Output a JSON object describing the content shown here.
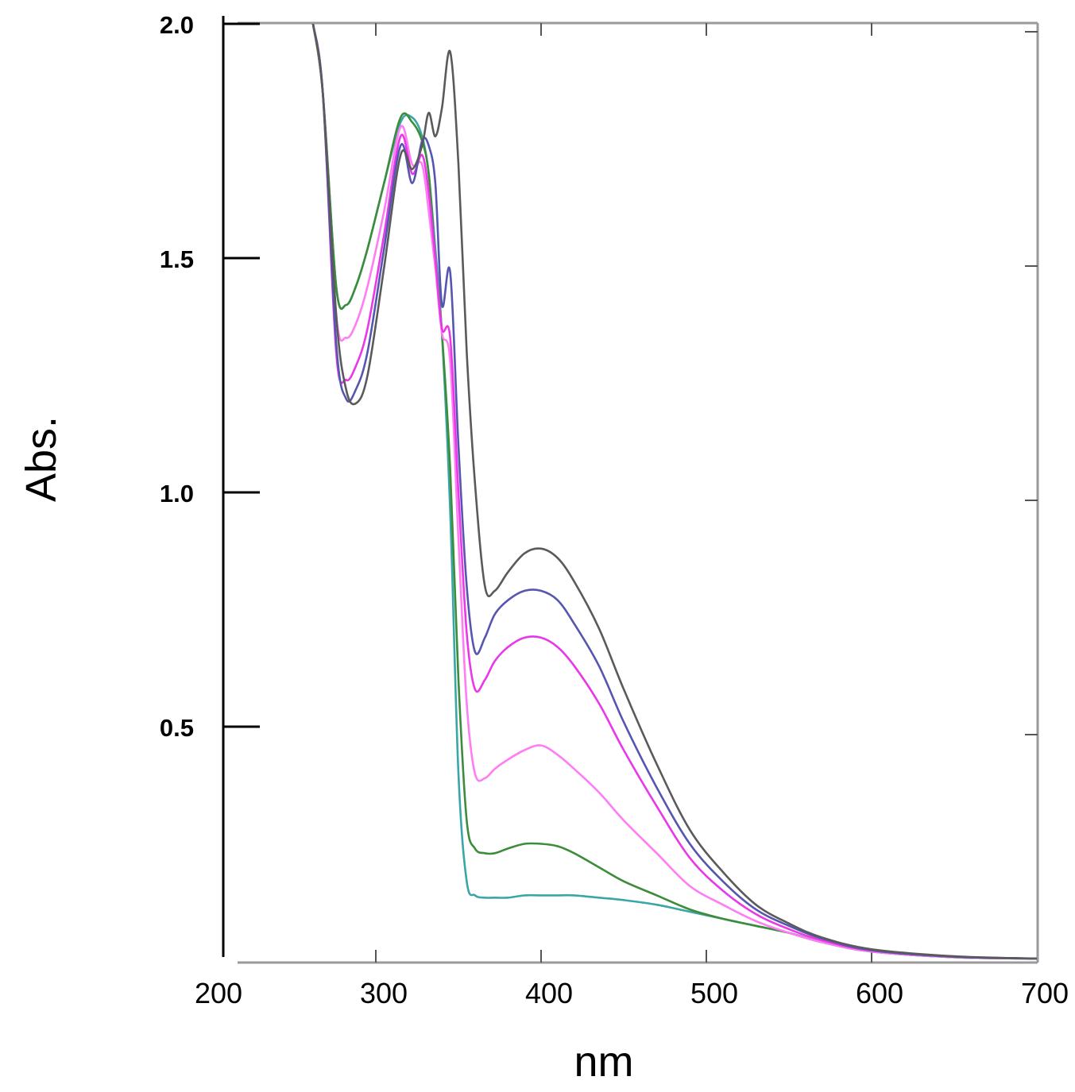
{
  "chart_data": {
    "type": "line",
    "title": "",
    "xlabel": "nm",
    "ylabel": "Abs.",
    "xlim": [
      200,
      700
    ],
    "ylim": [
      0,
      2.0
    ],
    "x_ticks": [
      {
        "value": 200,
        "label": "200"
      },
      {
        "value": 300,
        "label": "300"
      },
      {
        "value": 400,
        "label": "400"
      },
      {
        "value": 500,
        "label": "500"
      },
      {
        "value": 600,
        "label": "600"
      },
      {
        "value": 700,
        "label": "700"
      }
    ],
    "y_ticks": [
      {
        "value": 0.5,
        "label": "0.5"
      },
      {
        "value": 1.0,
        "label": "1.0"
      },
      {
        "value": 1.5,
        "label": "1.5"
      },
      {
        "value": 2.0,
        "label": "2.0"
      }
    ],
    "grid": false,
    "legend": "none",
    "series": [
      {
        "color": "#5a5a5a",
        "x": [
          262,
          268,
          276,
          282,
          288,
          295,
          305,
          315,
          322,
          328,
          332,
          336,
          340,
          345,
          350,
          355,
          360,
          366,
          372,
          380,
          390,
          400,
          410,
          420,
          435,
          450,
          470,
          490,
          510,
          530,
          550,
          570,
          600,
          650,
          700
        ],
        "y": [
          2.0,
          1.85,
          1.38,
          1.22,
          1.19,
          1.25,
          1.48,
          1.72,
          1.69,
          1.74,
          1.81,
          1.76,
          1.82,
          1.94,
          1.7,
          1.3,
          1.02,
          0.8,
          0.79,
          0.83,
          0.87,
          0.88,
          0.86,
          0.81,
          0.71,
          0.58,
          0.42,
          0.28,
          0.19,
          0.12,
          0.08,
          0.05,
          0.025,
          0.01,
          0.005
        ]
      },
      {
        "color": "#5656b0",
        "x": [
          262,
          268,
          276,
          282,
          288,
          295,
          305,
          315,
          322,
          328,
          332,
          336,
          340,
          345,
          350,
          355,
          360,
          366,
          372,
          380,
          390,
          400,
          410,
          420,
          435,
          450,
          470,
          490,
          510,
          530,
          550,
          570,
          600,
          650,
          700
        ],
        "y": [
          2.0,
          1.85,
          1.32,
          1.2,
          1.22,
          1.3,
          1.52,
          1.74,
          1.66,
          1.75,
          1.74,
          1.66,
          1.4,
          1.47,
          1.1,
          0.8,
          0.66,
          0.69,
          0.74,
          0.77,
          0.79,
          0.79,
          0.77,
          0.72,
          0.63,
          0.51,
          0.37,
          0.25,
          0.17,
          0.11,
          0.075,
          0.048,
          0.023,
          0.009,
          0.005
        ]
      },
      {
        "color": "#e838e8",
        "x": [
          262,
          268,
          276,
          282,
          288,
          295,
          305,
          315,
          322,
          328,
          332,
          336,
          340,
          345,
          350,
          355,
          360,
          366,
          372,
          380,
          390,
          400,
          410,
          420,
          435,
          450,
          470,
          490,
          510,
          530,
          550,
          570,
          600,
          650,
          700
        ],
        "y": [
          2.0,
          1.85,
          1.3,
          1.24,
          1.27,
          1.35,
          1.55,
          1.76,
          1.68,
          1.72,
          1.64,
          1.5,
          1.35,
          1.33,
          1.0,
          0.7,
          0.58,
          0.6,
          0.64,
          0.67,
          0.69,
          0.69,
          0.67,
          0.63,
          0.55,
          0.45,
          0.33,
          0.22,
          0.15,
          0.1,
          0.068,
          0.044,
          0.022,
          0.009,
          0.005
        ]
      },
      {
        "color": "#ff7cf4",
        "x": [
          262,
          268,
          276,
          282,
          288,
          295,
          305,
          315,
          322,
          328,
          332,
          336,
          340,
          345,
          350,
          355,
          360,
          366,
          372,
          380,
          390,
          400,
          410,
          420,
          435,
          450,
          470,
          490,
          510,
          530,
          550,
          570,
          600,
          650,
          700
        ],
        "y": [
          2.0,
          1.85,
          1.38,
          1.33,
          1.36,
          1.44,
          1.6,
          1.78,
          1.7,
          1.7,
          1.6,
          1.48,
          1.34,
          1.28,
          0.9,
          0.55,
          0.4,
          0.39,
          0.41,
          0.43,
          0.45,
          0.46,
          0.44,
          0.41,
          0.36,
          0.3,
          0.23,
          0.16,
          0.12,
          0.085,
          0.06,
          0.04,
          0.02,
          0.008,
          0.005
        ]
      },
      {
        "color": "#3c8c3c",
        "x": [
          262,
          268,
          276,
          282,
          288,
          295,
          305,
          315,
          322,
          328,
          332,
          336,
          340,
          345,
          350,
          355,
          360,
          366,
          372,
          380,
          390,
          400,
          410,
          420,
          435,
          450,
          470,
          490,
          510,
          530,
          550,
          570,
          600,
          650,
          700
        ],
        "y": [
          2.0,
          1.85,
          1.44,
          1.4,
          1.44,
          1.52,
          1.66,
          1.8,
          1.79,
          1.75,
          1.68,
          1.5,
          1.34,
          1.05,
          0.6,
          0.3,
          0.24,
          0.23,
          0.23,
          0.24,
          0.25,
          0.25,
          0.245,
          0.23,
          0.2,
          0.17,
          0.14,
          0.11,
          0.09,
          0.075,
          0.06,
          0.04,
          0.02,
          0.008,
          0.005
        ]
      },
      {
        "color": "#3aa6a6",
        "x": [
          262,
          268,
          276,
          282,
          288,
          295,
          305,
          315,
          322,
          328,
          332,
          336,
          340,
          345,
          350,
          355,
          360,
          366,
          372,
          380,
          390,
          400,
          410,
          420,
          435,
          450,
          470,
          490,
          510,
          530,
          550,
          570,
          600,
          650,
          700
        ],
        "y": [
          2.0,
          1.85,
          1.44,
          1.4,
          1.44,
          1.52,
          1.66,
          1.79,
          1.8,
          1.76,
          1.68,
          1.52,
          1.34,
          0.96,
          0.4,
          0.17,
          0.14,
          0.135,
          0.135,
          0.135,
          0.14,
          0.14,
          0.14,
          0.14,
          0.135,
          0.13,
          0.12,
          0.105,
          0.09,
          0.075,
          0.06,
          0.04,
          0.02,
          0.008,
          0.005
        ]
      }
    ]
  }
}
